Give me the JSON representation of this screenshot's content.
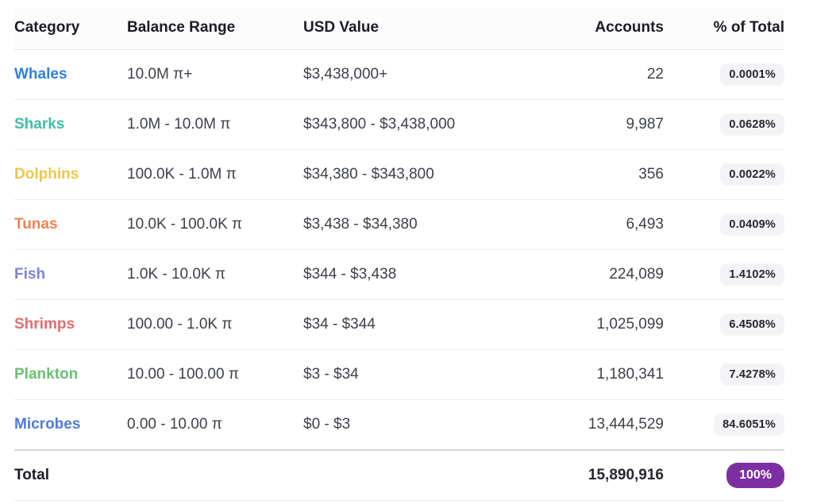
{
  "table": {
    "columns": [
      {
        "label": "Category",
        "align": "left"
      },
      {
        "label": "Balance Range",
        "align": "left"
      },
      {
        "label": "USD Value",
        "align": "left"
      },
      {
        "label": "Accounts",
        "align": "right"
      },
      {
        "label": "% of Total",
        "align": "right"
      }
    ],
    "rows": [
      {
        "category": "Whales",
        "color": "#2f7fe0",
        "balance": "10.0M π+",
        "usd": "$3,438,000+",
        "accounts": "22",
        "pct": "0.0001%"
      },
      {
        "category": "Sharks",
        "color": "#3fbf9f",
        "balance": "1.0M - 10.0M π",
        "usd": "$343,800 - $3,438,000",
        "accounts": "9,987",
        "pct": "0.0628%"
      },
      {
        "category": "Dolphins",
        "color": "#f0c64a",
        "balance": "100.0K - 1.0M π",
        "usd": "$34,380 - $343,800",
        "accounts": "356",
        "pct": "0.0022%"
      },
      {
        "category": "Tunas",
        "color": "#ee8155",
        "balance": "10.0K - 100.0K π",
        "usd": "$3,438 - $34,380",
        "accounts": "6,493",
        "pct": "0.0409%"
      },
      {
        "category": "Fish",
        "color": "#7f82d8",
        "balance": "1.0K - 10.0K π",
        "usd": "$344 - $3,438",
        "accounts": "224,089",
        "pct": "1.4102%"
      },
      {
        "category": "Shrimps",
        "color": "#e46b6e",
        "balance": "100.00 - 1.0K π",
        "usd": "$34 - $344",
        "accounts": "1,025,099",
        "pct": "6.4508%"
      },
      {
        "category": "Plankton",
        "color": "#68c072",
        "balance": "10.00 - 100.00 π",
        "usd": "$3 - $34",
        "accounts": "1,180,341",
        "pct": "7.4278%"
      },
      {
        "category": "Microbes",
        "color": "#4f79d9",
        "balance": "0.00 - 10.00 π",
        "usd": "$0 - $3",
        "accounts": "13,444,529",
        "pct": "84.6051%"
      }
    ],
    "total": {
      "label": "Total",
      "accounts": "15,890,916",
      "pct": "100%",
      "badge_bg": "#7d2fa2",
      "badge_text_color": "#ffffff"
    },
    "pct_badge_bg": "#f4f4f6"
  }
}
